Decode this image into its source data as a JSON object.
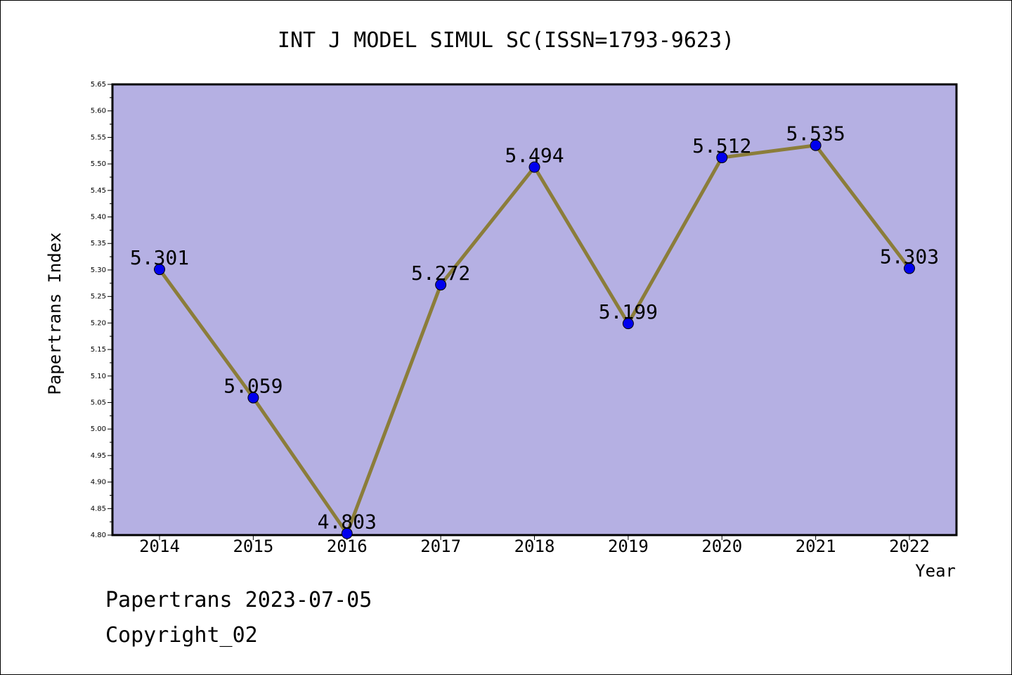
{
  "chart_data": {
    "type": "line",
    "title": "INT J MODEL SIMUL SC(ISSN=1793-9623)",
    "xlabel": "Year",
    "ylabel": "Papertrans Index",
    "categories": [
      "2014",
      "2015",
      "2016",
      "2017",
      "2018",
      "2019",
      "2020",
      "2021",
      "2022"
    ],
    "values": [
      5.301,
      5.059,
      4.803,
      5.272,
      5.494,
      5.199,
      5.512,
      5.535,
      5.303
    ],
    "data_labels": [
      "5.301",
      "5.059",
      "4.803",
      "5.272",
      "5.494",
      "5.199",
      "5.512",
      "5.535",
      "5.303"
    ],
    "yticks": [
      "4.80",
      "4.85",
      "4.90",
      "4.95",
      "5.00",
      "5.05",
      "5.10",
      "5.15",
      "5.20",
      "5.25",
      "5.30",
      "5.35",
      "5.40",
      "5.45",
      "5.50",
      "5.55",
      "5.60",
      "5.65"
    ],
    "ylim": [
      4.8,
      5.65
    ],
    "grid": false,
    "colors": {
      "plot_background": "#b5b0e3",
      "line": "#8b7d3a",
      "marker": "#0000ee"
    }
  },
  "footer": {
    "line1": "Papertrans 2023-07-05",
    "line2": "Copyright_02"
  }
}
